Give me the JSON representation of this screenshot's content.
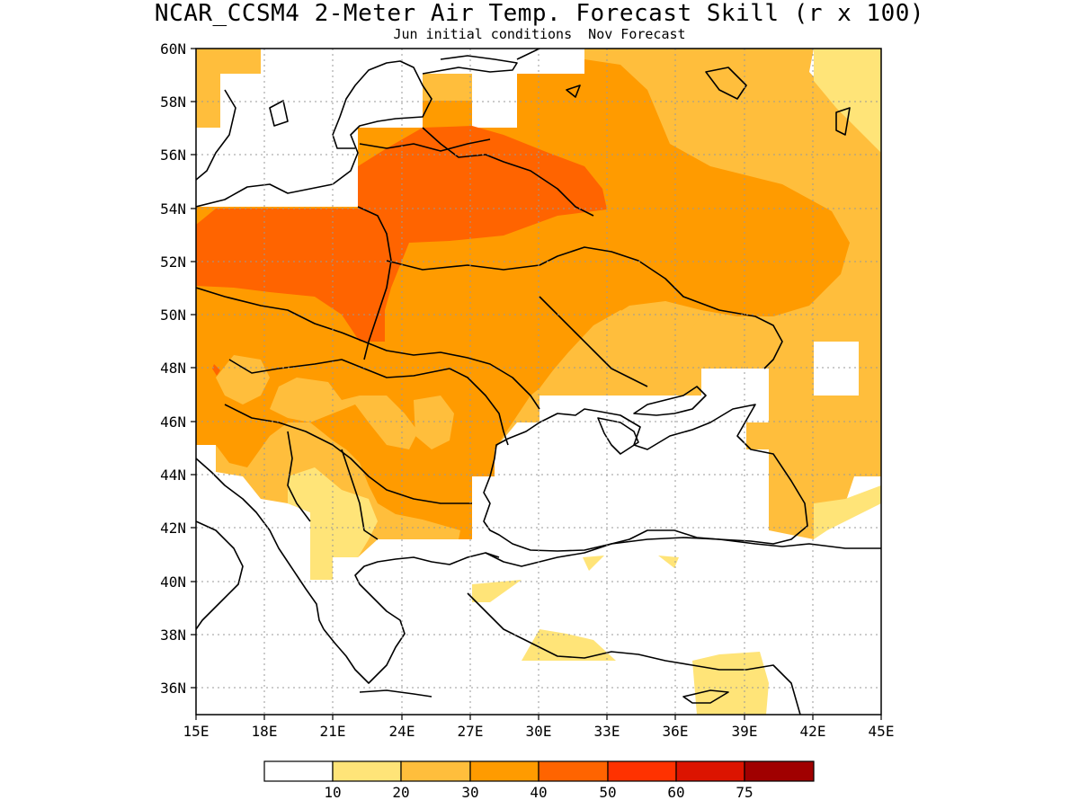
{
  "title": "NCAR_CCSM4 2-Meter Air Temp. Forecast Skill (r x 100)",
  "subtitle": "Jun initial conditions  Nov Forecast",
  "map": {
    "lon_range": [
      15,
      45
    ],
    "lat_range": [
      35,
      60
    ],
    "grid": "dotted",
    "lon_ticks": [
      "15E",
      "18E",
      "21E",
      "24E",
      "27E",
      "30E",
      "33E",
      "36E",
      "39E",
      "42E",
      "45E"
    ],
    "lat_ticks": [
      "60N",
      "58N",
      "56N",
      "54N",
      "52N",
      "50N",
      "48N",
      "46N",
      "44N",
      "42N",
      "40N",
      "38N",
      "36N"
    ]
  },
  "colorbar": {
    "labels": [
      "10",
      "20",
      "30",
      "40",
      "50",
      "60",
      "75"
    ],
    "colors": [
      "#ffffff",
      "#ffe478",
      "#ffbe3c",
      "#ff9b00",
      "#ff6400",
      "#ff3200",
      "#dc1400",
      "#a00000"
    ]
  },
  "shading_colors": {
    "c10_20": "#ffe478",
    "c20_30": "#ffbe3c",
    "c30_40": "#ff9b00",
    "c40_50": "#ff6400"
  }
}
